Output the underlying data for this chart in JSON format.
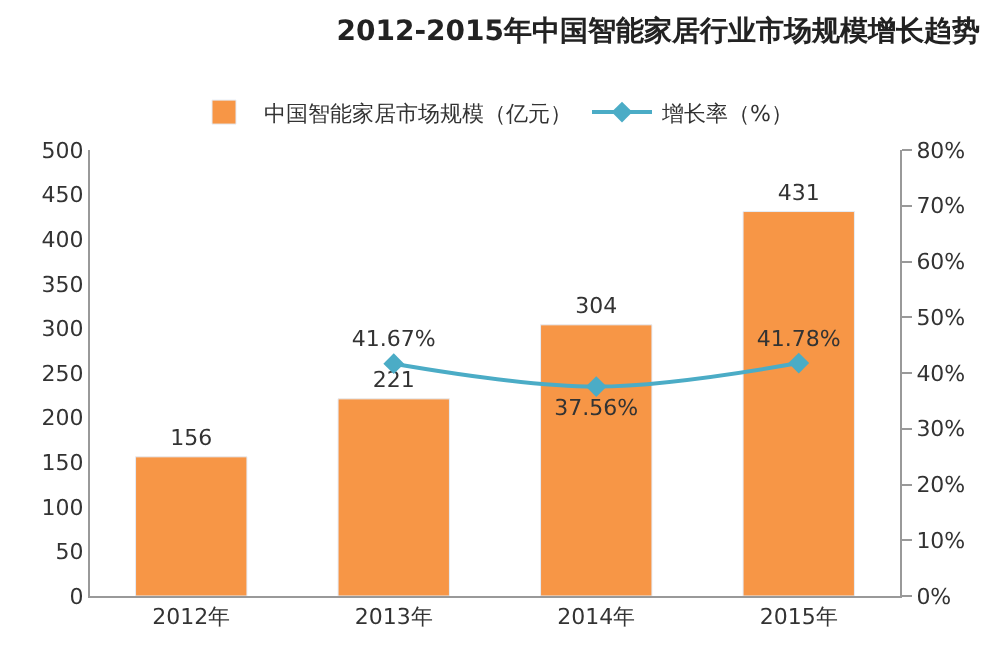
{
  "chart_data": {
    "type": "bar",
    "title": "2012-2015年中国智能家居行业市场规模增长趋势",
    "categories": [
      "2012年",
      "2013年",
      "2014年",
      "2015年"
    ],
    "series": [
      {
        "name": "中国智能家居市场规模（亿元）",
        "color": "#f79646",
        "values": [
          156,
          221,
          304,
          431
        ],
        "value_labels": [
          "156",
          "221",
          "304",
          "431"
        ]
      },
      {
        "name": "增长率（%）",
        "type": "line",
        "axis": "y2",
        "color": "#4bacc6",
        "marker": "diamond",
        "values": [
          null,
          41.67,
          37.56,
          41.78
        ],
        "value_labels": [
          null,
          "41.67%",
          "37.56%",
          "41.78%"
        ]
      }
    ],
    "ylim": [
      0,
      500
    ],
    "yticks": [
      0,
      50,
      100,
      150,
      200,
      250,
      300,
      350,
      400,
      450,
      500
    ],
    "y2lim": [
      0,
      80
    ],
    "y2ticks": [
      {
        "value": 0,
        "label": "0%"
      },
      {
        "value": 10,
        "label": "10%"
      },
      {
        "value": 20,
        "label": "20%"
      },
      {
        "value": 30,
        "label": "30%"
      },
      {
        "value": 40,
        "label": "40%"
      },
      {
        "value": 50,
        "label": "50%"
      },
      {
        "value": 60,
        "label": "60%"
      },
      {
        "value": 70,
        "label": "70%"
      },
      {
        "value": 80,
        "label": "80%"
      }
    ],
    "legend": "top"
  }
}
